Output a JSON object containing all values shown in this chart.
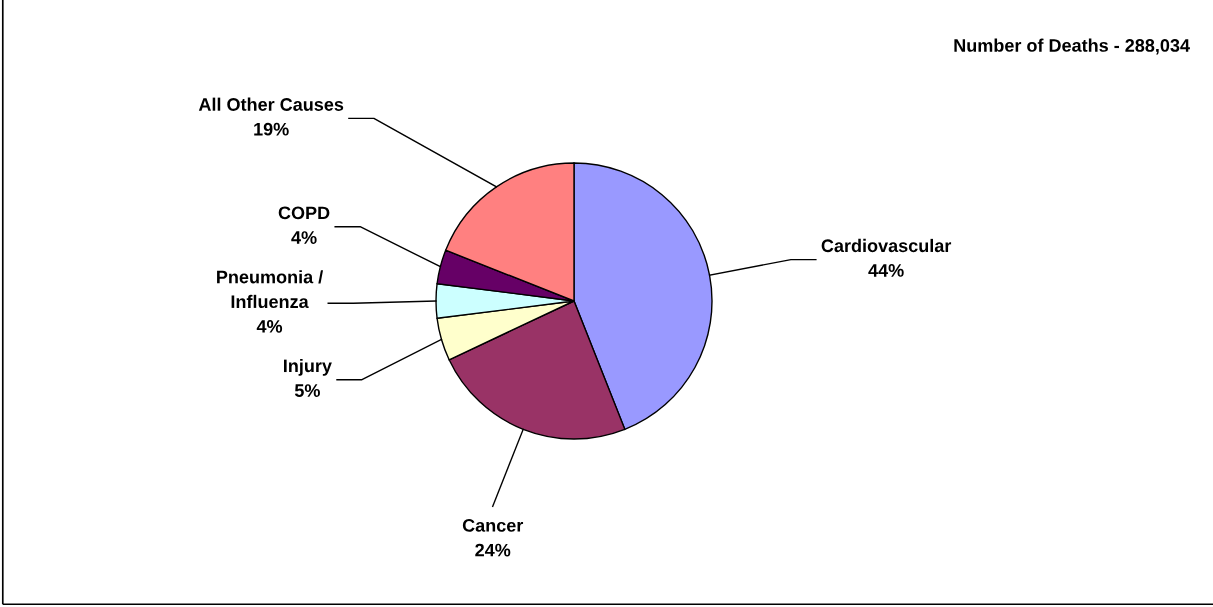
{
  "chart_data": {
    "type": "pie",
    "categories": [
      "Cardiovascular",
      "Cancer",
      "Injury",
      "Pneumonia /\nInfluenza",
      "COPD",
      "All Other Causes"
    ],
    "values": [
      44,
      24,
      5,
      4,
      4,
      19
    ],
    "colors": [
      "#9999ff",
      "#993366",
      "#ffffcc",
      "#ccffff",
      "#660066",
      "#ff8080"
    ],
    "annotations": [
      "Number of Deaths - 288,034"
    ],
    "value_labels": [
      "44%",
      "24%",
      "5%",
      "4%",
      "4%",
      "19%"
    ],
    "legend": false
  }
}
